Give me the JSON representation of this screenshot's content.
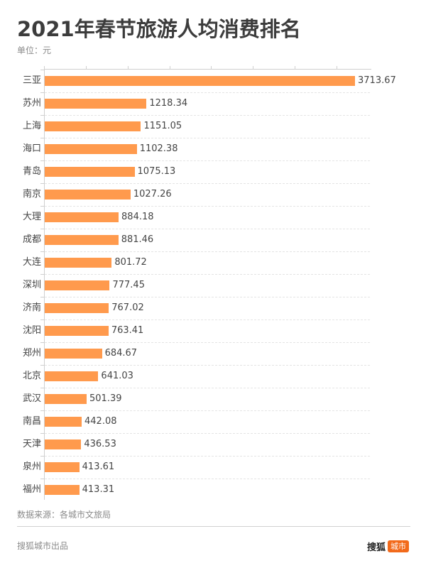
{
  "header": {
    "title": "2021年春节旅游人均消费排名",
    "unit": "单位：元"
  },
  "footer": {
    "source": "数据来源：各城市文旅局",
    "producer": "搜狐城市出品",
    "brand_text": "搜狐",
    "brand_badge": "城市"
  },
  "colors": {
    "bar": "#ff9a4d",
    "brand_badge": "#f26a1b",
    "axis": "#cfcfcf"
  },
  "chart_data": {
    "type": "bar",
    "orientation": "horizontal",
    "title": "2021年春节旅游人均消费排名",
    "subtitle": "单位：元",
    "xlabel": "",
    "ylabel": "",
    "xlim": [
      0,
      3900
    ],
    "x_tick_step": 500,
    "x_tick_labels_visible": false,
    "grid": "dashed horizontal row separators",
    "legend": "none",
    "categories": [
      "三亚",
      "苏州",
      "上海",
      "海口",
      "青岛",
      "南京",
      "大理",
      "成都",
      "大连",
      "深圳",
      "济南",
      "沈阳",
      "郑州",
      "北京",
      "武汉",
      "南昌",
      "天津",
      "泉州",
      "福州"
    ],
    "values": [
      3713.67,
      1218.34,
      1151.05,
      1102.38,
      1075.13,
      1027.26,
      884.18,
      881.46,
      801.72,
      777.45,
      767.02,
      763.41,
      684.67,
      641.03,
      501.39,
      442.08,
      436.53,
      413.61,
      413.31
    ],
    "value_labels": [
      "3713.67",
      "1218.34",
      "1151.05",
      "1102.38",
      "1075.13",
      "1027.26",
      "884.18",
      "881.46",
      "801.72",
      "777.45",
      "767.02",
      "763.41",
      "684.67",
      "641.03",
      "501.39",
      "442.08",
      "436.53",
      "413.61",
      "413.31"
    ],
    "source": "数据来源：各城市文旅局"
  }
}
